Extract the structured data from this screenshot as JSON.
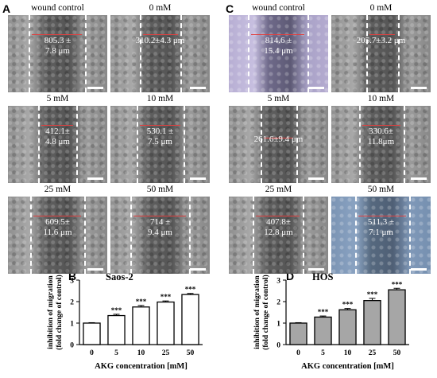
{
  "panel_letters": {
    "A": "A",
    "C": "C",
    "B": "B",
    "D": "D"
  },
  "panel_A": {
    "images": [
      {
        "caption": "wound control",
        "measurement": "805.3 ±\n7.8 μm"
      },
      {
        "caption": "0 mM",
        "measurement": "310.2±4.3 μm"
      },
      {
        "caption": "5 mM",
        "measurement": "412.1±\n4.8 μm"
      },
      {
        "caption": "10 mM",
        "measurement": "530.1 ±\n7.5 μm"
      },
      {
        "caption": "25 mM",
        "measurement": "609.5±\n11.6 μm"
      },
      {
        "caption": "50 mM",
        "measurement": "714 ±\n9.4 μm"
      }
    ]
  },
  "panel_C": {
    "images": [
      {
        "caption": "wound control",
        "measurement": "814.6 ±\n15.4 μm"
      },
      {
        "caption": "0 mM",
        "measurement": "205.7±3.2 μm"
      },
      {
        "caption": "5 mM",
        "measurement": "261.6±9.4 μm"
      },
      {
        "caption": "10 mM",
        "measurement": "330.6±\n11.8μm"
      },
      {
        "caption": "25 mM",
        "measurement": "407.8±\n12.8 μm"
      },
      {
        "caption": "50 mM",
        "measurement": "511.3 ±\n7.1 μm"
      }
    ]
  },
  "chart_data": [
    {
      "type": "bar",
      "title": "Saos-2",
      "categories": [
        "0",
        "5",
        "10",
        "25",
        "50"
      ],
      "values": [
        1.0,
        1.35,
        1.75,
        1.98,
        2.33
      ],
      "errors": [
        0.02,
        0.06,
        0.07,
        0.05,
        0.05
      ],
      "significance": [
        "",
        "***",
        "***",
        "***",
        "***"
      ],
      "xlabel": "AKG concentration [mM]",
      "ylabel": "inhibition of migration\n(fold change of control)",
      "yticks": [
        0,
        1,
        2,
        3
      ],
      "ylim": [
        0,
        3
      ],
      "bar_color": "#ffffff"
    },
    {
      "type": "bar",
      "title": "HOS",
      "categories": [
        "0",
        "5",
        "10",
        "25",
        "50"
      ],
      "values": [
        1.0,
        1.28,
        1.62,
        2.05,
        2.55
      ],
      "errors": [
        0.02,
        0.05,
        0.06,
        0.1,
        0.07
      ],
      "significance": [
        "",
        "***",
        "***",
        "***",
        "***"
      ],
      "xlabel": "AKG concentration [mM]",
      "ylabel": "inhibition of migration\n(fold change of control)",
      "yticks": [
        0,
        1,
        2,
        3
      ],
      "ylim": [
        0,
        3
      ],
      "bar_color": "#a6a6a6"
    }
  ]
}
